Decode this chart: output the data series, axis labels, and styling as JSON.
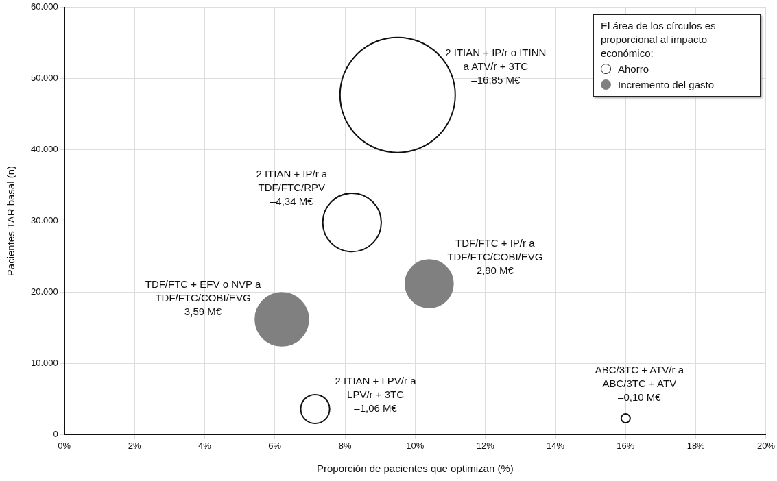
{
  "chart_data": {
    "type": "bubble",
    "xlabel": "Proporción de pacientes que optimizan (%)",
    "ylabel": "Pacientes TAR basal (n)",
    "legend_title": "El área de los círculos es proporcional al impacto económico:",
    "legend": "top right",
    "grid": true,
    "xlim": [
      0,
      20
    ],
    "xticks": [
      {
        "value": 0,
        "label": "0%"
      },
      {
        "value": 2,
        "label": "2%"
      },
      {
        "value": 4,
        "label": "4%"
      },
      {
        "value": 6,
        "label": "6%"
      },
      {
        "value": 8,
        "label": "8%"
      },
      {
        "value": 10,
        "label": "10%"
      },
      {
        "value": 12,
        "label": "12%"
      },
      {
        "value": 14,
        "label": "14%"
      },
      {
        "value": 16,
        "label": "16%"
      },
      {
        "value": 18,
        "label": "18%"
      },
      {
        "value": 20,
        "label": "20%"
      }
    ],
    "ylim": [
      0,
      60000
    ],
    "yticks": [
      0,
      {
        "value": 10000,
        "label": "10.000"
      },
      {
        "value": 20000,
        "label": "20.000"
      },
      {
        "value": 30000,
        "label": "30.000"
      },
      {
        "value": 40000,
        "label": "40.000"
      },
      {
        "value": 50000,
        "label": "50.000"
      },
      {
        "value": 60000,
        "label": "60.000"
      }
    ],
    "series": [
      {
        "name": "Ahorro",
        "color": "#ffffff",
        "x": [
          9.5,
          8.2,
          7.15,
          16
        ],
        "values": [
          47700,
          29800,
          3600,
          2300
        ],
        "sizes": [
          1,
          0.258,
          0.063,
          0.006
        ],
        "value_labels": [
          "2 ITIAN + IP/r o ITINN\na ATV/r + 3TC\n–16,85 M€",
          "2 ITIAN + IP/r a\nTDF/FTC/RPV\n–4,34 M€",
          "2 ITIAN + LPV/r a\nLPV/r + 3TC\n–1,06 M€",
          "ABC/3TC + ATV/r a\nABC/3TC + ATV\n–0,10 M€"
        ]
      },
      {
        "name": "Incremento del gasto",
        "color": "#808080",
        "x": [
          6.2,
          10.4
        ],
        "values": [
          16200,
          21200
        ],
        "sizes": [
          0.213,
          0.172
        ],
        "value_labels": [
          "TDF/FTC + EFV o NVP a\nTDF/FTC/COBI/EVG\n3,59 M€",
          "TDF/FTC + IP/r a\nTDF/FTC/COBI/EVG\n2,90 M€"
        ]
      }
    ]
  }
}
